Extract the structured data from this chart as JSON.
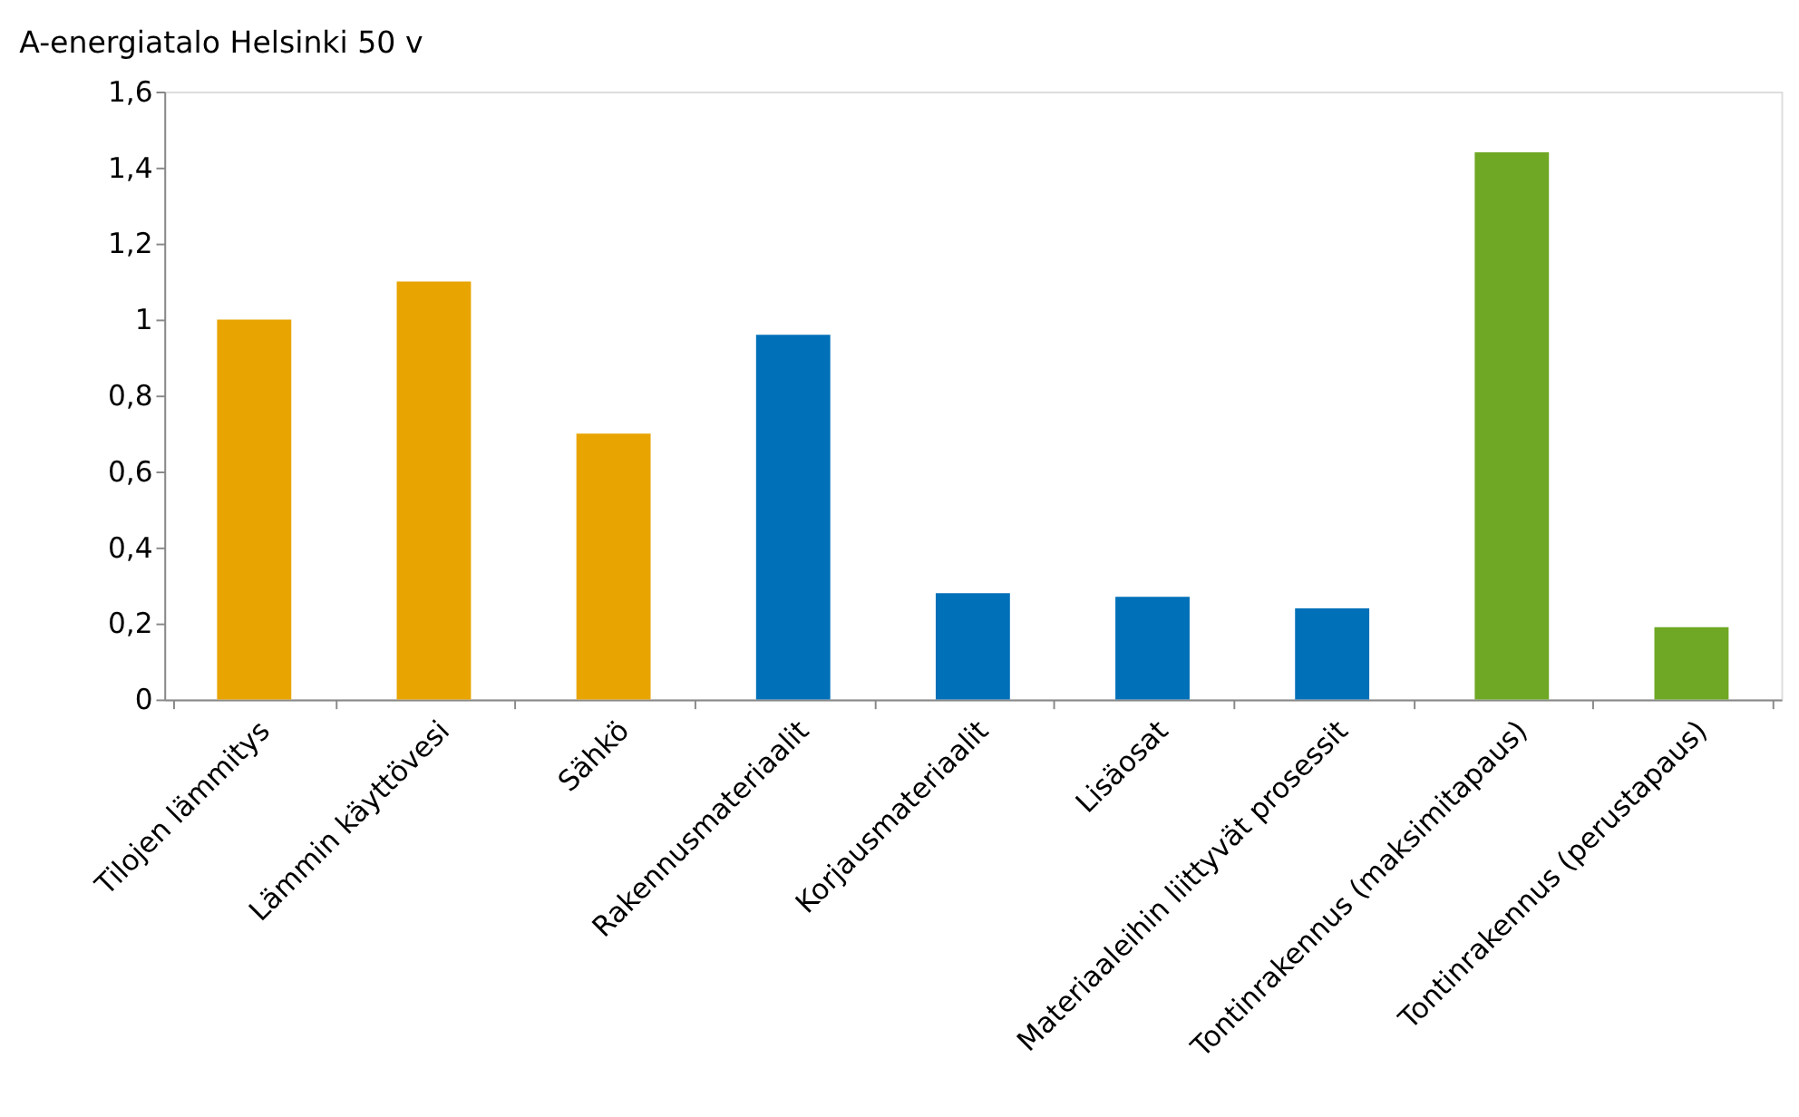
{
  "chart_data": {
    "type": "bar",
    "title": "A-energiatalo Helsinki 50 v",
    "categories": [
      "Tilojen lämmitys",
      "Lämmin käyttövesi",
      "Sähkö",
      "Rakennusmateriaalit",
      "Korjausmateriaalit",
      "Lisäosat",
      "Materiaaleihin liittyvät prosessit",
      "Tontinrakennus (maksimitapaus)",
      "Tontinrakennus (perustapaus)"
    ],
    "values": [
      1.0,
      1.1,
      0.7,
      0.96,
      0.28,
      0.27,
      0.24,
      1.44,
      0.19
    ],
    "colors": [
      "#e8a400",
      "#e8a400",
      "#e8a400",
      "#0070b8",
      "#0070b8",
      "#0070b8",
      "#0070b8",
      "#6fa824",
      "#6fa824"
    ],
    "ylim": [
      0,
      1.6
    ],
    "yticks": [
      0,
      {
        "value": 0.2,
        "label": "0,2"
      },
      {
        "value": 0.4,
        "label": "0,4"
      },
      {
        "value": 0.6,
        "label": "0,6"
      },
      {
        "value": 0.8,
        "label": "0,8"
      },
      1,
      {
        "value": 1.2,
        "label": "1,2"
      },
      {
        "value": 1.4,
        "label": "1,4"
      },
      {
        "value": 1.6,
        "label": "1,6"
      }
    ],
    "grid": false,
    "legend": false
  }
}
